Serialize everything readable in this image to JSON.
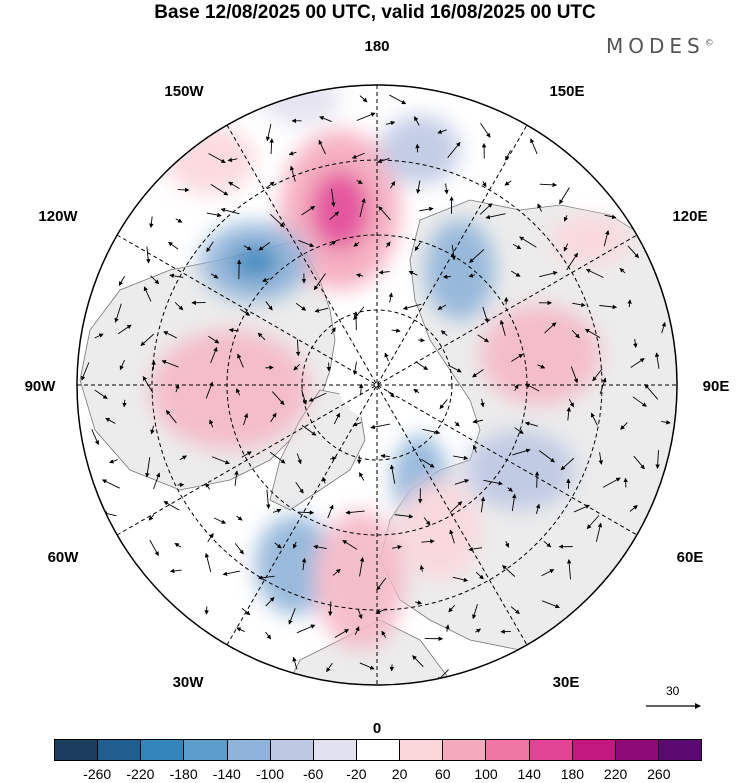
{
  "title": "Base 12/08/2025 00 UTC, valid 16/08/2025 00 UTC",
  "brand": "MODES",
  "brand_mark": "©",
  "longitude_labels": {
    "top": "180",
    "bottom": "0",
    "left": "90W",
    "right": "90E",
    "upper_left_1": "150W",
    "upper_left_2": "120W",
    "lower_left_1": "60W",
    "lower_left_2": "30W",
    "upper_right_1": "150E",
    "upper_right_2": "120E",
    "lower_right_1": "60E",
    "lower_right_2": "30E"
  },
  "reference_vector": {
    "label": "30"
  },
  "colorbar": {
    "colors": [
      "#1b3e5e",
      "#1f5e8e",
      "#3585bd",
      "#5d9dcb",
      "#8fb3d9",
      "#bdc8e3",
      "#e2e1ef",
      "#ffffff",
      "#fbd7dc",
      "#f5a9bc",
      "#ee77a3",
      "#e24595",
      "#c2187f",
      "#8f0a79",
      "#5c0a72"
    ],
    "tick_labels": [
      "-260",
      "-220",
      "-180",
      "-140",
      "-100",
      "-60",
      "-20",
      "20",
      "60",
      "100",
      "140",
      "180",
      "220",
      "260"
    ]
  },
  "icons": {
    "wind-arrow": "arrow",
    "reference-arrow": "arrow"
  }
}
